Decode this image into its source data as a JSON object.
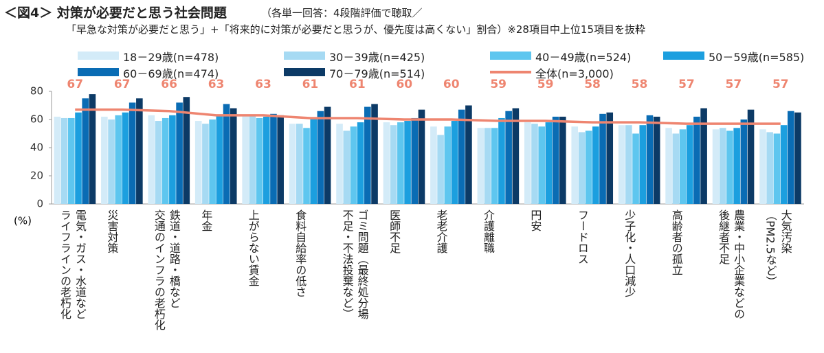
{
  "chart_data": {
    "type": "bar",
    "title": "＜図4＞ 対策が必要だと思う社会問題",
    "subtitle": "（各単一回答：4段階評価で聴取／",
    "subtitle2": "「早急な対策が必要だと思う」+「将来的に対策が必要だと思うが、優先度は高くない」割合）※28項目中上位15項目を抜粋",
    "y_label": "(%)",
    "categories": [
      "電気・ガス・水道など\nライフラインの老朽化",
      "災害対策",
      "鉄道・道路・橋など\n交通のインフラの老朽化",
      "年金",
      "上がらない賃金",
      "食料自給率の低さ",
      "ゴミ問題（最終処分場\n不足・不法投棄など）",
      "医師不足",
      "老老介護",
      "介護離職",
      "円安",
      "フードロス",
      "少子化・人口減少",
      "高齢者の孤立",
      "農業・中小企業などの\n後継者不足",
      "大気汚染\n（PM2.5など）"
    ],
    "series": [
      {
        "name": "18－29歳(n=478)",
        "type": "bar",
        "color": "#d3ebf8",
        "values": [
          62,
          62,
          63,
          59,
          63,
          57,
          57,
          58,
          55,
          54,
          58,
          55,
          56,
          54,
          53,
          53
        ]
      },
      {
        "name": "30－39歳(n=425)",
        "type": "bar",
        "color": "#a6daf3",
        "values": [
          61,
          60,
          59,
          57,
          63,
          57,
          52,
          56,
          49,
          54,
          57,
          51,
          56,
          50,
          54,
          51
        ]
      },
      {
        "name": "40－49歳(n=524)",
        "type": "bar",
        "color": "#5ec6ef",
        "values": [
          61,
          63,
          61,
          60,
          61,
          54,
          55,
          58,
          55,
          54,
          55,
          52,
          50,
          53,
          52,
          50
        ]
      },
      {
        "name": "50－59歳(n=585)",
        "type": "bar",
        "color": "#1c9fdf",
        "values": [
          65,
          65,
          63,
          63,
          62,
          61,
          58,
          59,
          59,
          61,
          58,
          55,
          56,
          56,
          54,
          56
        ]
      },
      {
        "name": "60－69歳(n=474)",
        "type": "bar",
        "color": "#0a6cb4",
        "values": [
          75,
          72,
          72,
          71,
          64,
          66,
          69,
          61,
          67,
          66,
          62,
          64,
          63,
          62,
          60,
          66
        ]
      },
      {
        "name": "70－79歳(n=514)",
        "type": "bar",
        "color": "#0c3a66",
        "values": [
          78,
          75,
          76,
          68,
          63,
          69,
          71,
          67,
          70,
          68,
          62,
          65,
          62,
          68,
          67,
          65
        ]
      },
      {
        "name": "全体(n=3,000)",
        "type": "line",
        "color": "#ee8570",
        "values": [
          67,
          67,
          66,
          63,
          63,
          61,
          61,
          60,
          60,
          59,
          59,
          58,
          58,
          57,
          57,
          57
        ]
      }
    ],
    "ylim": [
      0,
      80
    ],
    "yticks": [
      0,
      20,
      40,
      60,
      80
    ]
  }
}
